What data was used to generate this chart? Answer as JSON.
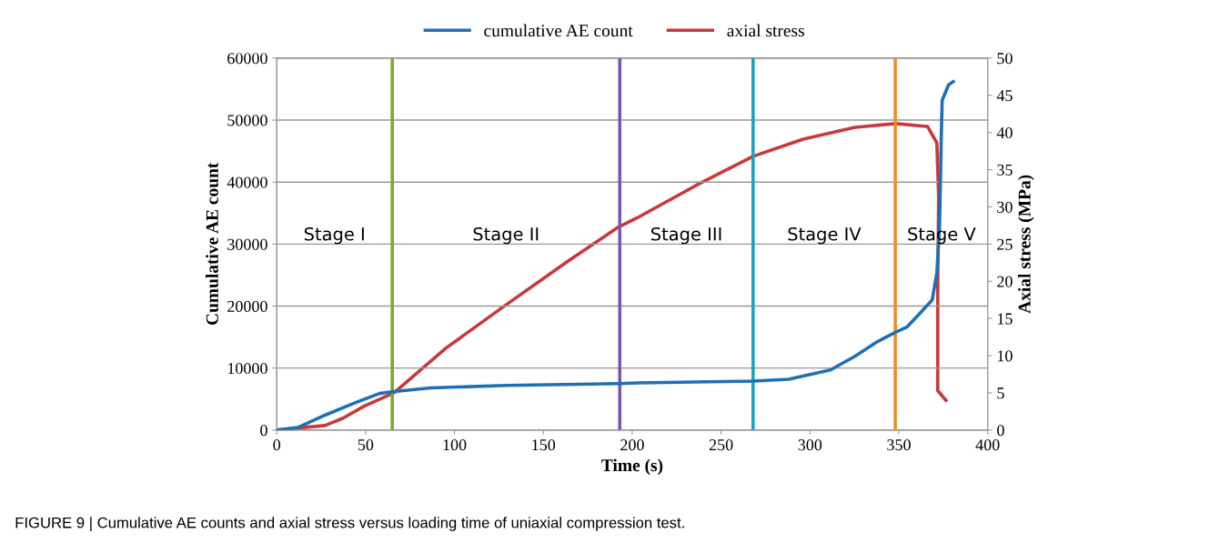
{
  "chart_data": {
    "type": "line",
    "xlabel": "Time (s)",
    "ylabel": "Cumulative AE count",
    "y2label": "Axial stress (MPa)",
    "xlim": [
      0,
      400
    ],
    "xticks": [
      0,
      50,
      100,
      150,
      200,
      250,
      300,
      350,
      400
    ],
    "ylim": [
      0,
      60000
    ],
    "yticks": [
      0,
      10000,
      20000,
      30000,
      40000,
      50000,
      60000
    ],
    "y2lim": [
      0,
      50
    ],
    "y2ticks": [
      0,
      5,
      10,
      15,
      20,
      25,
      30,
      35,
      40,
      45,
      50
    ],
    "grid": "y",
    "legend": "top",
    "marker": "none",
    "line_style": "solid",
    "series": [
      {
        "name": "cumulative AE count",
        "color": "#1f6fb5",
        "x": [
          0,
          11.8,
          27.1,
          44,
          57.8,
          66,
          86.4,
          129.4,
          192.3,
          202.6,
          268,
          288,
          311.5,
          325.3,
          337,
          348.3,
          354.5,
          362.7,
          368.8,
          371.4,
          372.9,
          373.9,
          374.4,
          378,
          380.6
        ],
        "values": [
          0,
          400,
          2400,
          4400,
          5900,
          6200,
          6800,
          7200,
          7500,
          7600,
          7900,
          8200,
          9700,
          11900,
          14100,
          15800,
          16600,
          19100,
          21000,
          25400,
          32700,
          47400,
          53200,
          55700,
          56200
        ]
      },
      {
        "name": "axial stress",
        "color": "#c8393a",
        "axis": "y2",
        "x": [
          0,
          27.1,
          37.3,
          49.1,
          66,
          95.1,
          129.4,
          163.2,
          192.3,
          202.6,
          236.8,
          268,
          296.2,
          325.3,
          348.3,
          366.2,
          371.4,
          372.4,
          371.9,
          371.9,
          376.5
        ],
        "values": [
          0,
          0.6,
          1.6,
          3.2,
          5.0,
          11.0,
          16.9,
          22.6,
          27.3,
          28.5,
          33,
          36.8,
          39.1,
          40.7,
          41.2,
          40.8,
          38.6,
          31.3,
          19.1,
          5.3,
          4.0
        ]
      }
    ],
    "ref_lines": [
      {
        "axis": "x",
        "value": 65,
        "color": "#77ac30"
      },
      {
        "axis": "x",
        "value": 193,
        "color": "#7e57a6"
      },
      {
        "axis": "x",
        "value": 268,
        "color": "#1aa3bd"
      },
      {
        "axis": "x",
        "value": 348,
        "color": "#f28c28"
      }
    ],
    "annotations": [
      "Stage I",
      "Stage II",
      "Stage III",
      "Stage IV",
      "Stage V",
      "FIGURE 9 | Cumulative AE counts and axial stress versus loading time of uniaxial compression test."
    ]
  }
}
